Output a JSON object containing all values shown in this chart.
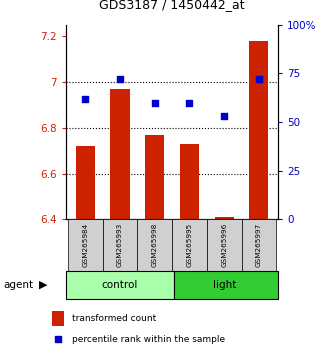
{
  "title": "GDS3187 / 1450442_at",
  "categories": [
    "GSM265984",
    "GSM265993",
    "GSM265998",
    "GSM265995",
    "GSM265996",
    "GSM265997"
  ],
  "groups": [
    "control",
    "control",
    "control",
    "light",
    "light",
    "light"
  ],
  "bar_bottom": 6.4,
  "bar_tops": [
    6.72,
    6.97,
    6.77,
    6.73,
    6.41,
    7.18
  ],
  "percentile_values": [
    62,
    72,
    60,
    60,
    53,
    72
  ],
  "ylim_left": [
    6.4,
    7.25
  ],
  "ylim_right": [
    0,
    100
  ],
  "yticks_left": [
    6.4,
    6.6,
    6.8,
    7.0,
    7.2
  ],
  "ytick_labels_left": [
    "6.4",
    "6.6",
    "6.8",
    "7",
    "7.2"
  ],
  "yticks_right": [
    0,
    25,
    50,
    75,
    100
  ],
  "ytick_labels_right": [
    "0",
    "25",
    "50",
    "75",
    "100%"
  ],
  "bar_color": "#cc2200",
  "dot_color": "#0000cc",
  "control_color": "#aaffaa",
  "light_color": "#33cc33",
  "tick_color_left": "#cc2200",
  "tick_color_right": "#0000cc",
  "agent_label": "agent",
  "legend_bar_label": "transformed count",
  "legend_dot_label": "percentile rank within the sample",
  "grid_yticks": [
    6.6,
    6.8,
    7.0
  ],
  "sample_bg_color": "#d0d0d0"
}
